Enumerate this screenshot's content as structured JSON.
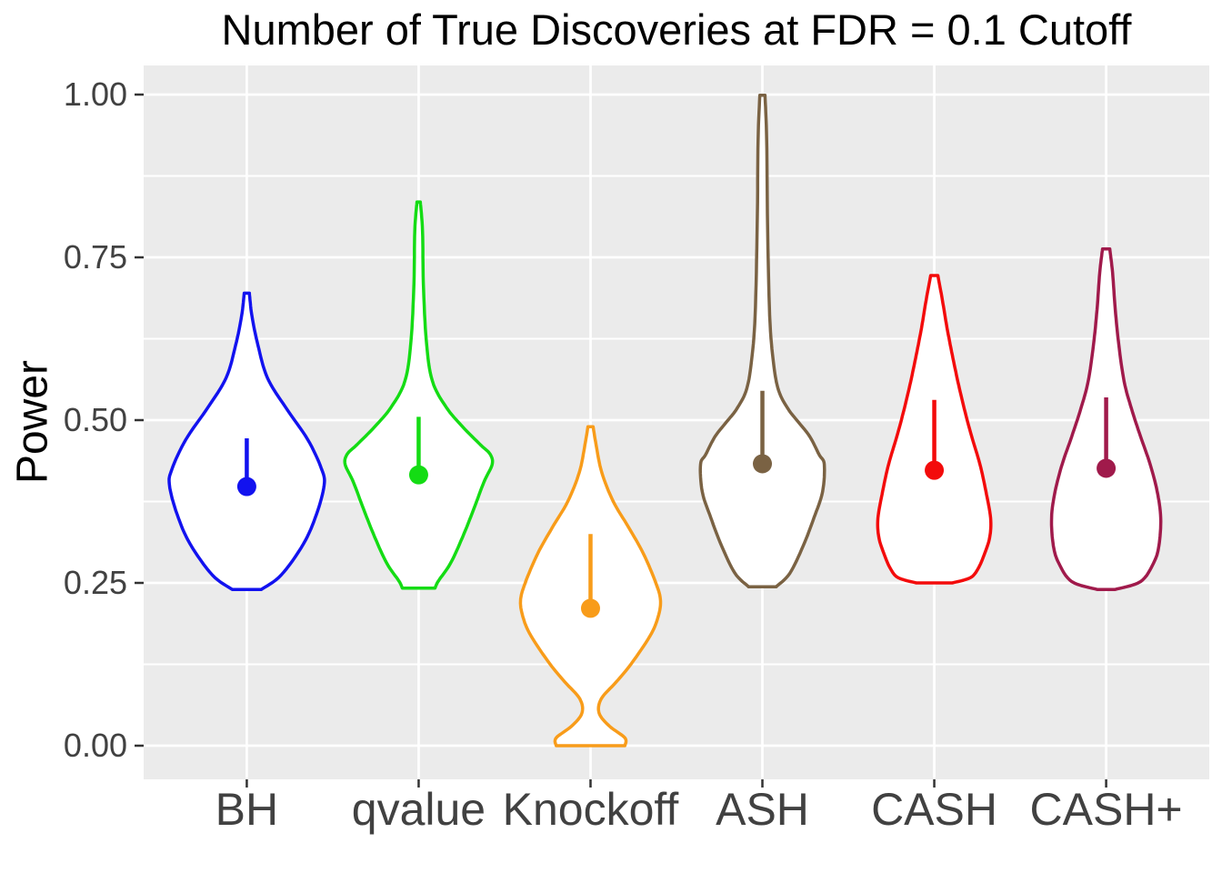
{
  "chart_data": {
    "type": "violin",
    "title": "Number of True Discoveries at FDR = 0.1 Cutoff",
    "xlabel": "",
    "ylabel": "Power",
    "categories": [
      "BH",
      "qvalue",
      "Knockoff",
      "ASH",
      "CASH",
      "CASH+"
    ],
    "ylim": [
      0,
      1
    ],
    "yticks": {
      "values": [
        0,
        0.25,
        0.5,
        0.75,
        1
      ],
      "labels": [
        "0.00",
        "0.25",
        "0.50",
        "0.75",
        "1.00"
      ]
    },
    "minor_gridlines": [
      0.125,
      0.375,
      0.625,
      0.875
    ],
    "grid": "on",
    "legend_position": "none",
    "panel_background": "#EBEBEB",
    "gridline_color": "#FFFFFF",
    "axis_text_color": "#414141",
    "axis_tick_color": "#333333",
    "violin_fill": "#FFFFFF",
    "series": [
      {
        "name": "BH",
        "color": "#1212EF",
        "mean_dot": 0.398,
        "segment_top": 0.472,
        "min": 0.24,
        "max": 0.69,
        "profile": [
          [
            0.695,
            0.03
          ],
          [
            0.66,
            0.06
          ],
          [
            0.615,
            0.13
          ],
          [
            0.565,
            0.24
          ],
          [
            0.52,
            0.45
          ],
          [
            0.47,
            0.71
          ],
          [
            0.425,
            0.87
          ],
          [
            0.4,
            0.9
          ],
          [
            0.355,
            0.81
          ],
          [
            0.31,
            0.66
          ],
          [
            0.262,
            0.4
          ],
          [
            0.24,
            0.17
          ]
        ]
      },
      {
        "name": "qvalue",
        "color": "#14DC14",
        "mean_dot": 0.416,
        "segment_top": 0.505,
        "min": 0.24,
        "max": 0.83,
        "profile": [
          [
            0.835,
            0.02
          ],
          [
            0.79,
            0.045
          ],
          [
            0.71,
            0.055
          ],
          [
            0.62,
            0.09
          ],
          [
            0.56,
            0.16
          ],
          [
            0.52,
            0.32
          ],
          [
            0.49,
            0.51
          ],
          [
            0.462,
            0.72
          ],
          [
            0.448,
            0.83
          ],
          [
            0.432,
            0.855
          ],
          [
            0.405,
            0.76
          ],
          [
            0.363,
            0.64
          ],
          [
            0.32,
            0.51
          ],
          [
            0.28,
            0.37
          ],
          [
            0.253,
            0.23
          ],
          [
            0.242,
            0.19
          ]
        ]
      },
      {
        "name": "Knockoff",
        "color": "#F89C1A",
        "mean_dot": 0.211,
        "segment_top": 0.325,
        "min": 0.0,
        "max": 0.49,
        "profile": [
          [
            0.49,
            0.03
          ],
          [
            0.462,
            0.065
          ],
          [
            0.42,
            0.13
          ],
          [
            0.375,
            0.265
          ],
          [
            0.335,
            0.445
          ],
          [
            0.295,
            0.615
          ],
          [
            0.25,
            0.76
          ],
          [
            0.222,
            0.815
          ],
          [
            0.195,
            0.78
          ],
          [
            0.168,
            0.69
          ],
          [
            0.126,
            0.475
          ],
          [
            0.098,
            0.3
          ],
          [
            0.072,
            0.125
          ],
          [
            0.05,
            0.1
          ],
          [
            0.03,
            0.22
          ],
          [
            0.012,
            0.4
          ],
          [
            0.0,
            0.4
          ]
        ]
      },
      {
        "name": "ASH",
        "color": "#7A6243",
        "mean_dot": 0.433,
        "segment_top": 0.545,
        "min": 0.24,
        "max": 0.99,
        "profile": [
          [
            0.999,
            0.03
          ],
          [
            0.93,
            0.05
          ],
          [
            0.8,
            0.06
          ],
          [
            0.66,
            0.085
          ],
          [
            0.587,
            0.13
          ],
          [
            0.545,
            0.19
          ],
          [
            0.517,
            0.3
          ],
          [
            0.5,
            0.4
          ],
          [
            0.475,
            0.55
          ],
          [
            0.447,
            0.66
          ],
          [
            0.432,
            0.72
          ],
          [
            0.39,
            0.7
          ],
          [
            0.35,
            0.6
          ],
          [
            0.307,
            0.475
          ],
          [
            0.265,
            0.32
          ],
          [
            0.244,
            0.16
          ]
        ]
      },
      {
        "name": "CASH",
        "color": "#F30B0B",
        "mean_dot": 0.423,
        "segment_top": 0.531,
        "min": 0.25,
        "max": 0.72,
        "profile": [
          [
            0.722,
            0.042
          ],
          [
            0.684,
            0.095
          ],
          [
            0.642,
            0.148
          ],
          [
            0.6,
            0.21
          ],
          [
            0.559,
            0.275
          ],
          [
            0.517,
            0.35
          ],
          [
            0.475,
            0.435
          ],
          [
            0.433,
            0.53
          ],
          [
            0.391,
            0.6
          ],
          [
            0.35,
            0.655
          ],
          [
            0.32,
            0.645
          ],
          [
            0.293,
            0.58
          ],
          [
            0.272,
            0.51
          ],
          [
            0.258,
            0.42
          ],
          [
            0.25,
            0.21
          ]
        ]
      },
      {
        "name": "CASH+",
        "color": "#A01A4B",
        "mean_dot": 0.426,
        "segment_top": 0.535,
        "min": 0.24,
        "max": 0.76,
        "profile": [
          [
            0.763,
            0.042
          ],
          [
            0.726,
            0.075
          ],
          [
            0.67,
            0.106
          ],
          [
            0.615,
            0.148
          ],
          [
            0.559,
            0.21
          ],
          [
            0.517,
            0.296
          ],
          [
            0.475,
            0.4
          ],
          [
            0.433,
            0.51
          ],
          [
            0.391,
            0.593
          ],
          [
            0.35,
            0.635
          ],
          [
            0.307,
            0.614
          ],
          [
            0.28,
            0.55
          ],
          [
            0.252,
            0.4
          ],
          [
            0.24,
            0.106
          ]
        ]
      }
    ]
  }
}
